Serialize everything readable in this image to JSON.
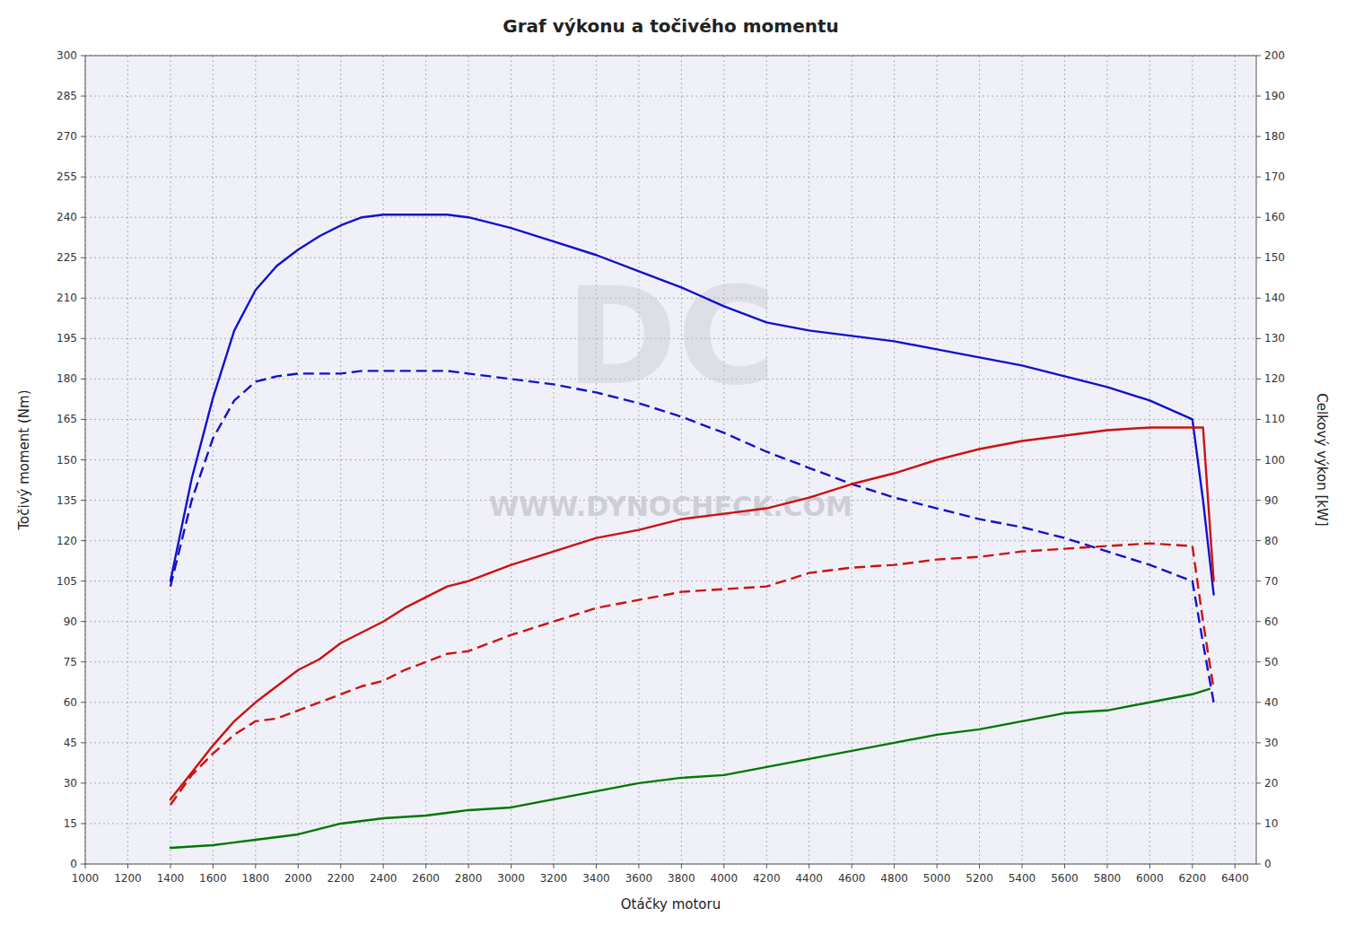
{
  "chart_data": {
    "type": "line",
    "title": "Graf výkonu a točivého momentu",
    "x_label": "Otáčky motoru",
    "y_label": "Točivý moment (Nm)",
    "y2_label": "Celkový výkon [kW]",
    "annotations": [
      "WWW.DYNOCHECK.COM",
      "DC"
    ],
    "xlim": [
      1000,
      6500
    ],
    "ylim": [
      0,
      300
    ],
    "y2lim": [
      0,
      200
    ],
    "xticks": [
      1000,
      1200,
      1400,
      1600,
      1800,
      2000,
      2200,
      2400,
      2600,
      2800,
      3000,
      3200,
      3400,
      3600,
      3800,
      4000,
      4200,
      4400,
      4600,
      4800,
      5000,
      5200,
      5400,
      5600,
      5800,
      6000,
      6200,
      6400
    ],
    "yticks": [
      0,
      15,
      30,
      45,
      60,
      75,
      90,
      105,
      120,
      135,
      150,
      165,
      180,
      195,
      210,
      225,
      240,
      255,
      270,
      285,
      300
    ],
    "y2ticks": [
      0,
      10,
      20,
      30,
      40,
      50,
      60,
      70,
      80,
      90,
      100,
      110,
      120,
      130,
      140,
      150,
      160,
      170,
      180,
      190,
      200
    ],
    "grid": true,
    "color": "#f0f0f8",
    "series": [
      {
        "color": "#1111cc",
        "line_style": "solid",
        "x": [
          1400,
          1500,
          1600,
          1700,
          1800,
          1900,
          2000,
          2100,
          2200,
          2300,
          2400,
          2500,
          2600,
          2700,
          2800,
          2900,
          3000,
          3200,
          3400,
          3600,
          3800,
          4000,
          4200,
          4400,
          4600,
          4800,
          5000,
          5200,
          5400,
          5600,
          5800,
          6000,
          6200,
          6250,
          6300
        ],
        "values": [
          105,
          143,
          173,
          198,
          213,
          222,
          228,
          233,
          237,
          240,
          241,
          241,
          241,
          241,
          240,
          238,
          236,
          231,
          226,
          220,
          214,
          207,
          201,
          198,
          196,
          194,
          191,
          188,
          185,
          181,
          177,
          172,
          165,
          135,
          100
        ]
      },
      {
        "color": "#1111cc",
        "line_style": "dashed",
        "x": [
          1400,
          1500,
          1600,
          1700,
          1800,
          1900,
          2000,
          2100,
          2200,
          2300,
          2400,
          2500,
          2600,
          2700,
          2800,
          2900,
          3000,
          3200,
          3400,
          3600,
          3800,
          4000,
          4200,
          4400,
          4600,
          4800,
          5000,
          5200,
          5400,
          5600,
          5800,
          6000,
          6200,
          6250,
          6300
        ],
        "values": [
          103,
          135,
          158,
          172,
          179,
          181,
          182,
          182,
          182,
          183,
          183,
          183,
          183,
          183,
          182,
          181,
          180,
          178,
          175,
          171,
          166,
          160,
          153,
          147,
          141,
          136,
          132,
          128,
          125,
          121,
          116,
          111,
          105,
          82,
          60
        ]
      },
      {
        "color": "#cc1111",
        "line_style": "solid",
        "x": [
          1400,
          1500,
          1600,
          1700,
          1800,
          1900,
          2000,
          2100,
          2200,
          2300,
          2400,
          2500,
          2600,
          2700,
          2800,
          2900,
          3000,
          3200,
          3400,
          3600,
          3800,
          4000,
          4200,
          4400,
          4600,
          4800,
          5000,
          5200,
          5400,
          5600,
          5800,
          6000,
          6200,
          6250,
          6300
        ],
        "values": [
          24,
          34,
          44,
          53,
          60,
          66,
          72,
          76,
          82,
          86,
          90,
          95,
          99,
          103,
          105,
          108,
          111,
          116,
          121,
          124,
          128,
          130,
          132,
          136,
          141,
          145,
          150,
          154,
          157,
          159,
          161,
          162,
          162,
          162,
          105
        ]
      },
      {
        "color": "#cc1111",
        "line_style": "dashed",
        "x": [
          1400,
          1500,
          1600,
          1700,
          1800,
          1900,
          2000,
          2100,
          2200,
          2300,
          2400,
          2500,
          2600,
          2700,
          2800,
          2900,
          3000,
          3200,
          3400,
          3600,
          3800,
          4000,
          4200,
          4400,
          4600,
          4800,
          5000,
          5200,
          5400,
          5600,
          5800,
          6000,
          6200,
          6250,
          6300
        ],
        "values": [
          22,
          33,
          41,
          48,
          53,
          54,
          57,
          60,
          63,
          66,
          68,
          72,
          75,
          78,
          79,
          82,
          85,
          90,
          95,
          98,
          101,
          102,
          103,
          108,
          110,
          111,
          113,
          114,
          116,
          117,
          118,
          119,
          118,
          90,
          65
        ]
      },
      {
        "color": "#007700",
        "line_style": "solid",
        "x": [
          1400,
          1600,
          1800,
          2000,
          2200,
          2400,
          2600,
          2800,
          3000,
          3200,
          3400,
          3600,
          3800,
          4000,
          4200,
          4400,
          4600,
          4800,
          5000,
          5200,
          5400,
          5600,
          5800,
          6000,
          6200,
          6280
        ],
        "values": [
          6,
          7,
          9,
          11,
          15,
          17,
          18,
          20,
          21,
          24,
          27,
          30,
          32,
          33,
          36,
          39,
          42,
          45,
          48,
          50,
          53,
          56,
          57,
          60,
          63,
          65
        ]
      }
    ]
  }
}
